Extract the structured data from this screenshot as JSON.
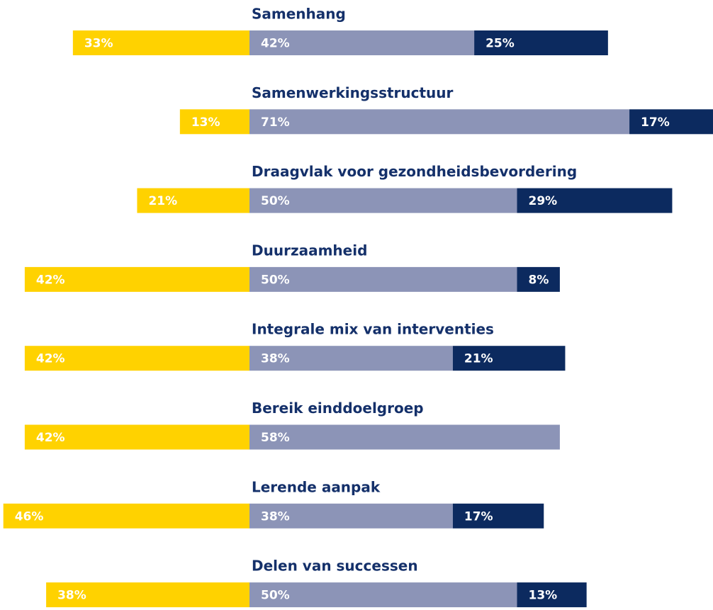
{
  "chart_data": {
    "type": "diverging_bar",
    "categories": [
      "Samenhang",
      "Samenwerkingsstructuur",
      "Draagvlak voor gezondheidsbevordering",
      "Duurzaamheid",
      "Integrale mix van interventies",
      "Bereik einddoelgroep",
      "Lerende aanpak",
      "Delen van successen"
    ],
    "series": [
      {
        "color": "#ffd200",
        "values": [
          33,
          13,
          21,
          42,
          42,
          42,
          46,
          38
        ],
        "value_labels": [
          "33%",
          "13%",
          "21%",
          "42%",
          "42%",
          "42%",
          "46%",
          "38%"
        ]
      },
      {
        "color": "#8c94b7",
        "values": [
          42,
          71,
          50,
          50,
          38,
          58,
          38,
          50
        ],
        "value_labels": [
          "42%",
          "71%",
          "50%",
          "50%",
          "38%",
          "58%",
          "38%",
          "50%"
        ]
      },
      {
        "color": "#0c2a5f",
        "values": [
          25,
          17,
          29,
          8,
          21,
          null,
          17,
          13
        ],
        "value_labels": [
          "25%",
          "17%",
          "29%",
          "8%",
          "21%",
          null,
          "17%",
          "13%"
        ]
      }
    ]
  }
}
